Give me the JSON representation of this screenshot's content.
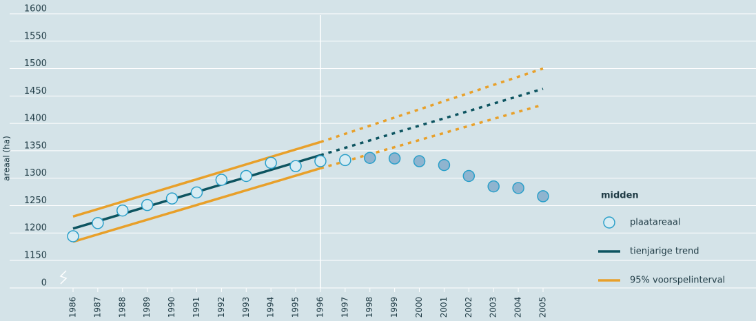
{
  "chart_data": {
    "type": "line",
    "y_label": "areaal (ha)",
    "legend_title": "midden",
    "legend": "right",
    "grid": true,
    "ylim": [
      0,
      1600
    ],
    "axis_break": [
      0,
      1150
    ],
    "yticks": [
      0,
      1150,
      1200,
      1250,
      1300,
      1350,
      1400,
      1450,
      1500,
      1550,
      1600
    ],
    "xlim": [
      1986,
      2005
    ],
    "xticks": [
      1986,
      1987,
      1988,
      1989,
      1990,
      1991,
      1992,
      1993,
      1994,
      1995,
      1996,
      1997,
      1998,
      1999,
      2000,
      2001,
      2002,
      2003,
      2004,
      2005
    ],
    "divider_x": 1996,
    "series": [
      {
        "name": "plaatareaal",
        "style": "marker",
        "color": "#2a9fc9",
        "x": [
          1986,
          1987,
          1988,
          1989,
          1990,
          1991,
          1992,
          1993,
          1994,
          1995,
          1996,
          1997,
          1998,
          1999,
          2000,
          2001,
          2002,
          2003,
          2004,
          2005
        ],
        "values": [
          1194,
          1218,
          1241,
          1251,
          1263,
          1274,
          1297,
          1304,
          1328,
          1322,
          1331,
          1333,
          1337,
          1336,
          1331,
          1324,
          1304,
          1285,
          1282,
          1267
        ],
        "fills": [
          "#d8ecf3",
          "#d8ecf3",
          "#d8ecf3",
          "#d8ecf3",
          "#d8ecf3",
          "#d8ecf3",
          "#d8ecf3",
          "#d8ecf3",
          "#d8ecf3",
          "#d8ecf3",
          "#d8ecf3",
          "#d8ecf3",
          "#8fb4cf",
          "#8fb4cf",
          "#8fb4cf",
          "#8fb4cf",
          "#8fb4cf",
          "#8fb4cf",
          "#8fb4cf",
          "#8fb4cf"
        ]
      },
      {
        "name": "tienjarige trend",
        "style": "solid",
        "color": "#0d5460",
        "x": [
          1986,
          1996
        ],
        "values": [
          1208,
          1342
        ]
      },
      {
        "style": "dotted",
        "color": "#0d5460",
        "x": [
          1996,
          2005
        ],
        "values": [
          1342,
          1463
        ]
      },
      {
        "name": "95% voorspelinterval",
        "style": "solid",
        "color": "#e8a02a",
        "x": [
          1986,
          1996
        ],
        "values": [
          1230,
          1366
        ]
      },
      {
        "style": "solid",
        "color": "#e8a02a",
        "x": [
          1986,
          1996
        ],
        "values": [
          1184,
          1318
        ]
      },
      {
        "style": "dotted",
        "color": "#e8a02a",
        "x": [
          1996,
          2005
        ],
        "values": [
          1366,
          1500
        ]
      },
      {
        "style": "dotted",
        "color": "#e8a02a",
        "x": [
          1996,
          2005
        ],
        "values": [
          1318,
          1434
        ]
      }
    ]
  }
}
